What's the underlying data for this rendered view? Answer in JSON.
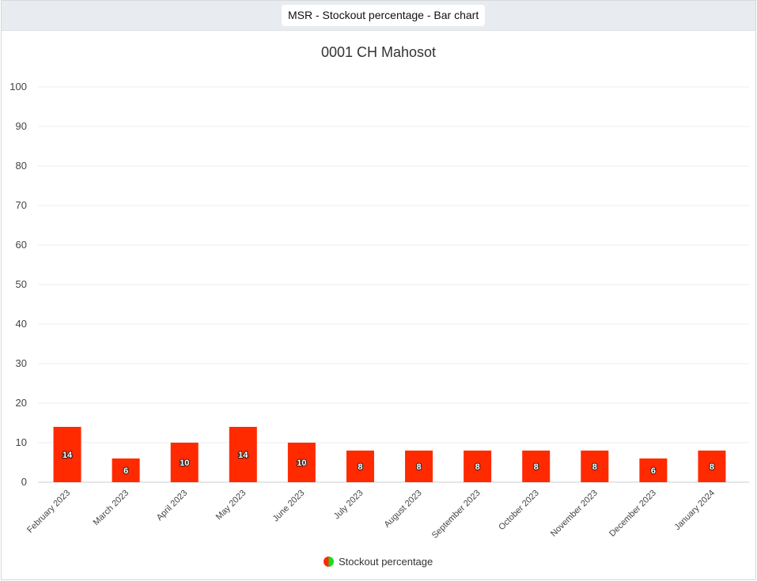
{
  "header": {
    "tab_label": "MSR - Stockout percentage - Bar chart"
  },
  "chart_data": {
    "type": "bar",
    "title": "0001 CH Mahosot",
    "categories": [
      "February 2023",
      "March 2023",
      "April 2023",
      "May 2023",
      "June 2023",
      "July 2023",
      "August 2023",
      "September 2023",
      "October 2023",
      "November 2023",
      "December 2023",
      "January 2024"
    ],
    "series": [
      {
        "name": "Stockout percentage",
        "values": [
          14,
          6,
          10,
          14,
          10,
          8,
          8,
          8,
          8,
          8,
          6,
          8
        ],
        "color": "#ff2a00"
      }
    ],
    "ylim": [
      0,
      100
    ],
    "yticks": [
      0,
      10,
      20,
      30,
      40,
      50,
      60,
      70,
      80,
      90,
      100
    ],
    "grid": true,
    "legend_position": "bottom-center",
    "legend_colors": [
      "#ff2a00",
      "#1ed91e"
    ]
  }
}
